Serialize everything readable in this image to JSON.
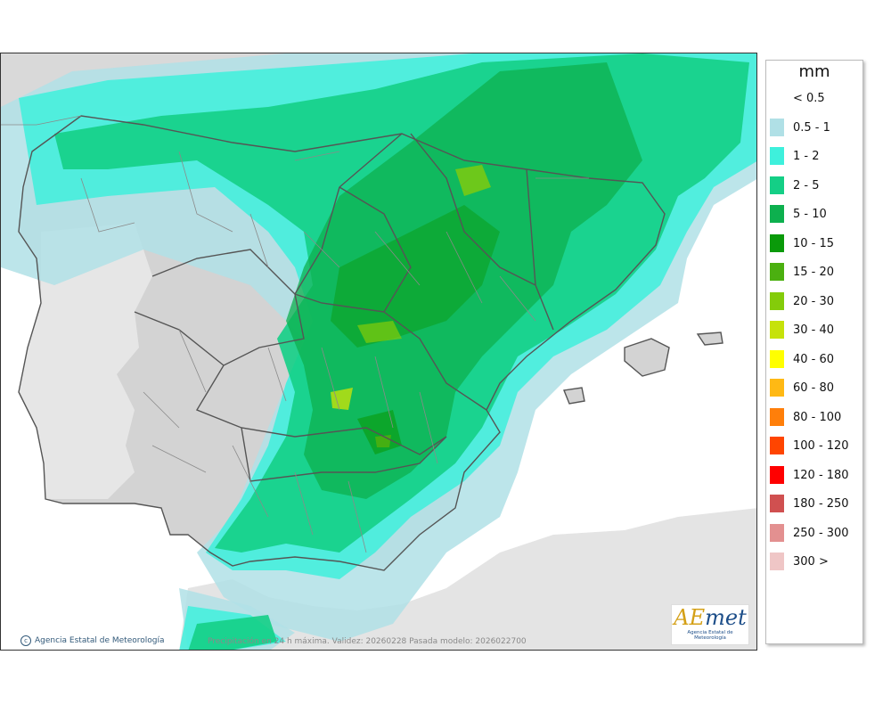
{
  "legend": {
    "title": "mm",
    "items": [
      {
        "label": "< 0.5",
        "color": "#ffffff"
      },
      {
        "label": "0.5 - 1",
        "color": "#b0e0e6"
      },
      {
        "label": "1 - 2",
        "color": "#3ef0dc"
      },
      {
        "label": "2 - 5",
        "color": "#14cf86"
      },
      {
        "label": "5 - 10",
        "color": "#0db04e"
      },
      {
        "label": "10 - 15",
        "color": "#0a9a0a"
      },
      {
        "label": "15 - 20",
        "color": "#4bb010"
      },
      {
        "label": "20 - 30",
        "color": "#84cc0a"
      },
      {
        "label": "30 - 40",
        "color": "#c6e20a"
      },
      {
        "label": "40 - 60",
        "color": "#ffff00"
      },
      {
        "label": "60 - 80",
        "color": "#ffb914"
      },
      {
        "label": "80 - 100",
        "color": "#ff7f0a"
      },
      {
        "label": "100 - 120",
        "color": "#ff4500"
      },
      {
        "label": "120 - 180",
        "color": "#ff0000"
      },
      {
        "label": "180 - 250",
        "color": "#d05050"
      },
      {
        "label": "250 - 300",
        "color": "#e39090"
      },
      {
        "label": "300 >",
        "color": "#efc6c6"
      }
    ]
  },
  "footer": {
    "credit": "Agencia Estatal de Meteorología",
    "caption": "Precipitación en 24 h máxima. Validez: 20260228 Pasada modelo: 2026022700"
  },
  "logo": {
    "word_a": "AE",
    "word_b": "met",
    "subtitle": "Agencia Estatal de Meteorología"
  }
}
